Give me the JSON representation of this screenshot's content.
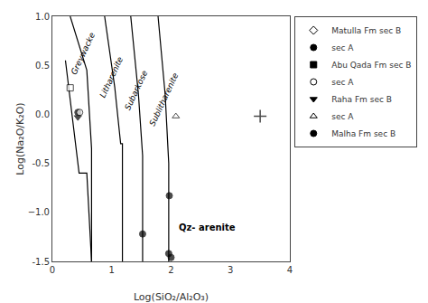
{
  "chart_data": {
    "type": "scatter",
    "xlabel": "Log(SiO₂/Al₂O₃)",
    "ylabel": "Log(Na₂O/K₂O)",
    "xlim": [
      0,
      4
    ],
    "ylim": [
      -1.5,
      1.0
    ],
    "xticks": [
      0,
      1,
      2,
      3,
      4
    ],
    "yticks": [
      -1.5,
      {
        "value": -1.0,
        "label": "−1.0"
      },
      -0.5,
      {
        "value": 0,
        "label": "0.0"
      },
      0.5,
      {
        "value": 1.0,
        "label": "1.0"
      }
    ],
    "grid": false,
    "legend": "upper right",
    "field_labels": [
      {
        "text": "Greywacke",
        "x": 0.52,
        "y": 0.62
      },
      {
        "text": "Litharenite",
        "x": 1.0,
        "y": 0.38
      },
      {
        "text": "Subarkose",
        "x": 1.42,
        "y": 0.25
      },
      {
        "text": "Sublitharenite",
        "x": 1.88,
        "y": 0.15
      }
    ],
    "annotations": [
      {
        "text": "Qz- arenite",
        "x": 2.1,
        "y": -1.15
      }
    ],
    "series": [
      {
        "type": "line",
        "color": "black",
        "x": [
          0.3,
          0.58,
          0.66,
          0.66
        ],
        "y": [
          1.0,
          0.45,
          -0.35,
          -1.5
        ]
      },
      {
        "type": "line",
        "color": "black",
        "x": [
          0.22,
          0.45,
          0.58,
          0.66
        ],
        "y": [
          0.55,
          -0.6,
          -0.6,
          -1.5
        ]
      },
      {
        "type": "line",
        "color": "black",
        "x": [
          0.88,
          1.05,
          1.15,
          1.18,
          1.18
        ],
        "y": [
          1.0,
          0.28,
          -0.3,
          -0.3,
          -1.5
        ]
      },
      {
        "type": "line",
        "color": "black",
        "x": [
          1.32,
          1.45,
          1.52,
          1.52
        ],
        "y": [
          1.0,
          0.2,
          -0.42,
          -1.5
        ]
      },
      {
        "type": "line",
        "color": "black",
        "x": [
          1.78,
          1.9,
          1.96,
          1.96
        ],
        "y": [
          1.0,
          0.2,
          -0.5,
          -1.5
        ]
      },
      {
        "type": "scatter",
        "color": "black",
        "x": [
          0.3,
          0.43,
          0.46,
          0.43,
          2.08,
          1.52,
          1.97,
          1.96,
          2.0,
          3.5
        ],
        "y": [
          0.27,
          0.02,
          0.02,
          -0.03,
          -0.02,
          -1.22,
          -0.83,
          -1.42,
          -1.46,
          -0.02
        ],
        "markers": [
          "square-open",
          "circle",
          "circle-open",
          "triangle-down",
          "triangle-up-open",
          "circle",
          "circle",
          "circle",
          "circle",
          "cross"
        ]
      }
    ],
    "legend_items": [
      {
        "name": "Matulla Fm sec B",
        "marker": "diamond-open",
        "color": "black"
      },
      {
        "name": "sec A",
        "marker": "circle",
        "color": "black"
      },
      {
        "name": "Abu Qada Fm sec B",
        "marker": "square",
        "color": "black"
      },
      {
        "name": "sec A",
        "marker": "circle-open",
        "color": "black"
      },
      {
        "name": "Raha Fm sec B",
        "marker": "triangle-down",
        "color": "black"
      },
      {
        "name": "sec A",
        "marker": "triangle-up-open",
        "color": "black"
      },
      {
        "name": "Malha Fm sec B",
        "marker": "circle",
        "color": "black"
      }
    ]
  }
}
